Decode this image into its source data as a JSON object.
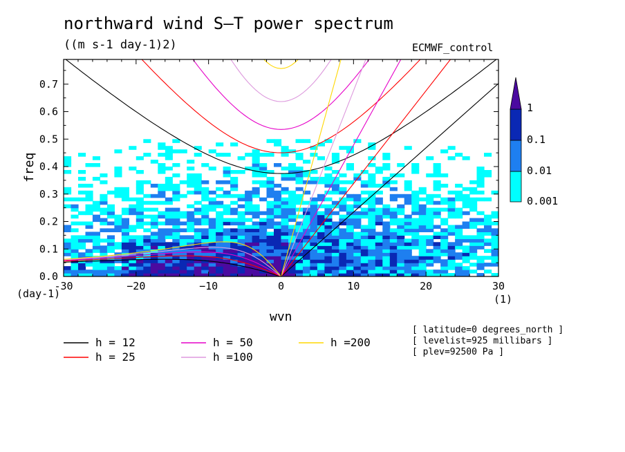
{
  "chart_data": {
    "type": "heatmap",
    "title": "northward wind S—T power spectrum",
    "subtitle": "((m s-1 day-1)2)",
    "source_label": "ECMWF_control",
    "xlabel": "wvn",
    "ylabel": "freq",
    "x_unit": "(1)",
    "y_unit": "(day-1)",
    "xlim": [
      -30,
      30
    ],
    "ylim": [
      0,
      0.79
    ],
    "x_ticks": [
      -30,
      -20,
      -10,
      0,
      10,
      20,
      30
    ],
    "x_tick_labels": [
      "-30",
      "−20",
      "−10",
      "0",
      "10",
      "20",
      "30"
    ],
    "y_ticks": [
      0,
      0.1,
      0.2,
      0.3,
      0.4,
      0.5,
      0.6,
      0.7
    ],
    "y_tick_labels": [
      "0.0",
      "0.1",
      "0.2",
      "0.3",
      "0.4",
      "0.5",
      "0.6",
      "0.7"
    ],
    "colorbar": {
      "levels": [
        "0.001",
        "0.01",
        "0.1",
        "1"
      ],
      "colors": [
        "#00ffff",
        "#1e7ff0",
        "#0a28b4",
        "#4b0aa0"
      ]
    },
    "series": [
      {
        "name": "h = 12",
        "h": 12,
        "color": "#000000"
      },
      {
        "name": "h = 25",
        "h": 25,
        "color": "#ff0000"
      },
      {
        "name": "h = 50",
        "h": 50,
        "color": "#e600c8"
      },
      {
        "name": "h =100",
        "h": 100,
        "color": "#dd99dd"
      },
      {
        "name": "h =200",
        "h": 200,
        "color": "#ffd700"
      }
    ],
    "annotations": [
      "[ latitude=0 degrees_north ]",
      "[ levelist=925 millibars ]",
      "[ plev=92500 Pa ]"
    ]
  }
}
